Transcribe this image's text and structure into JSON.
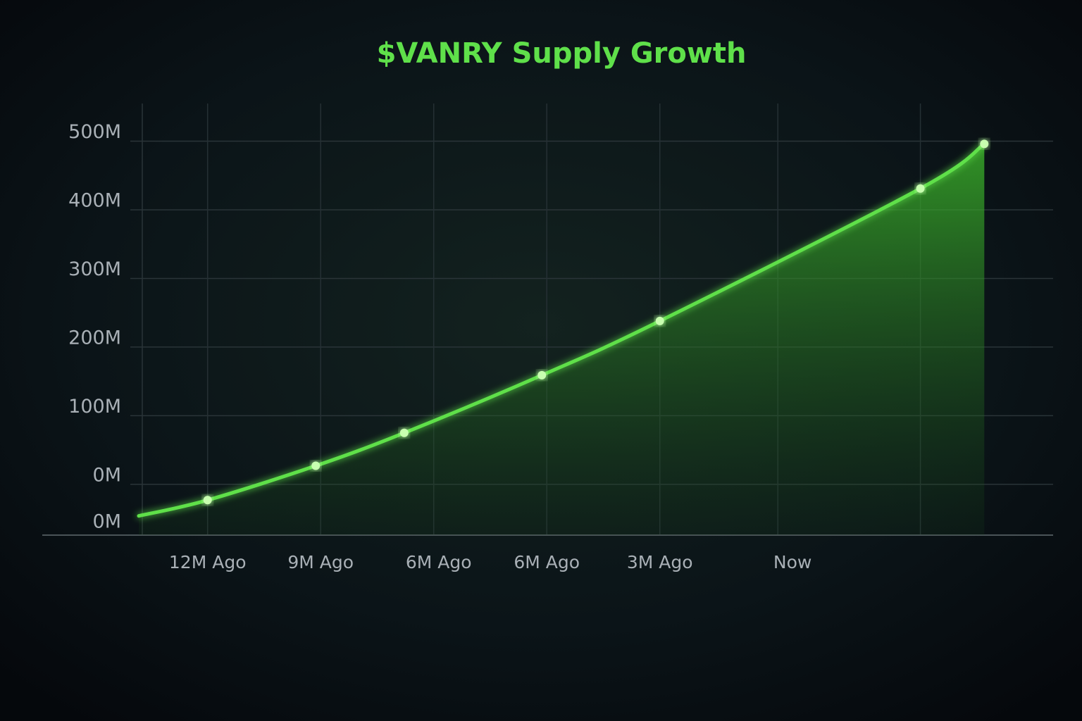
{
  "chart_data": {
    "type": "area",
    "title": "$VANRY Supply Growth",
    "x": [
      -13.3,
      -11.9,
      -9.7,
      -7.9,
      -5.1,
      -2.7,
      2.6,
      3.9
    ],
    "series": [
      {
        "name": "Supply",
        "color": "#5fe04a",
        "values": [
          -46,
          -23,
          27,
          75,
          159,
          238,
          431,
          496
        ]
      }
    ],
    "xlim": [
      -13.3,
      5.3
    ],
    "xticks": [
      {
        "value": -11.9,
        "label": "12M Ago"
      },
      {
        "value": -9.6,
        "label": "9M Ago"
      },
      {
        "value": -7.2,
        "label": "6M Ago"
      },
      {
        "value": -5.0,
        "label": "6M Ago"
      },
      {
        "value": -2.7,
        "label": "3M Ago"
      },
      {
        "value": 0,
        "label": "Now"
      }
    ],
    "xgrid": [
      -11.9,
      -9.6,
      -7.3,
      -5.0,
      -2.7,
      -0.3,
      2.6
    ],
    "ylim": [
      -74,
      560
    ],
    "yticks": [
      {
        "value": 0,
        "label": "0M"
      },
      {
        "value": 100,
        "label": "100M"
      },
      {
        "value": 200,
        "label": "200M"
      },
      {
        "value": 300,
        "label": "300M"
      },
      {
        "value": 400,
        "label": "400M"
      },
      {
        "value": 500,
        "label": "500M"
      }
    ],
    "y_floor_label": "0M",
    "grid": true
  }
}
